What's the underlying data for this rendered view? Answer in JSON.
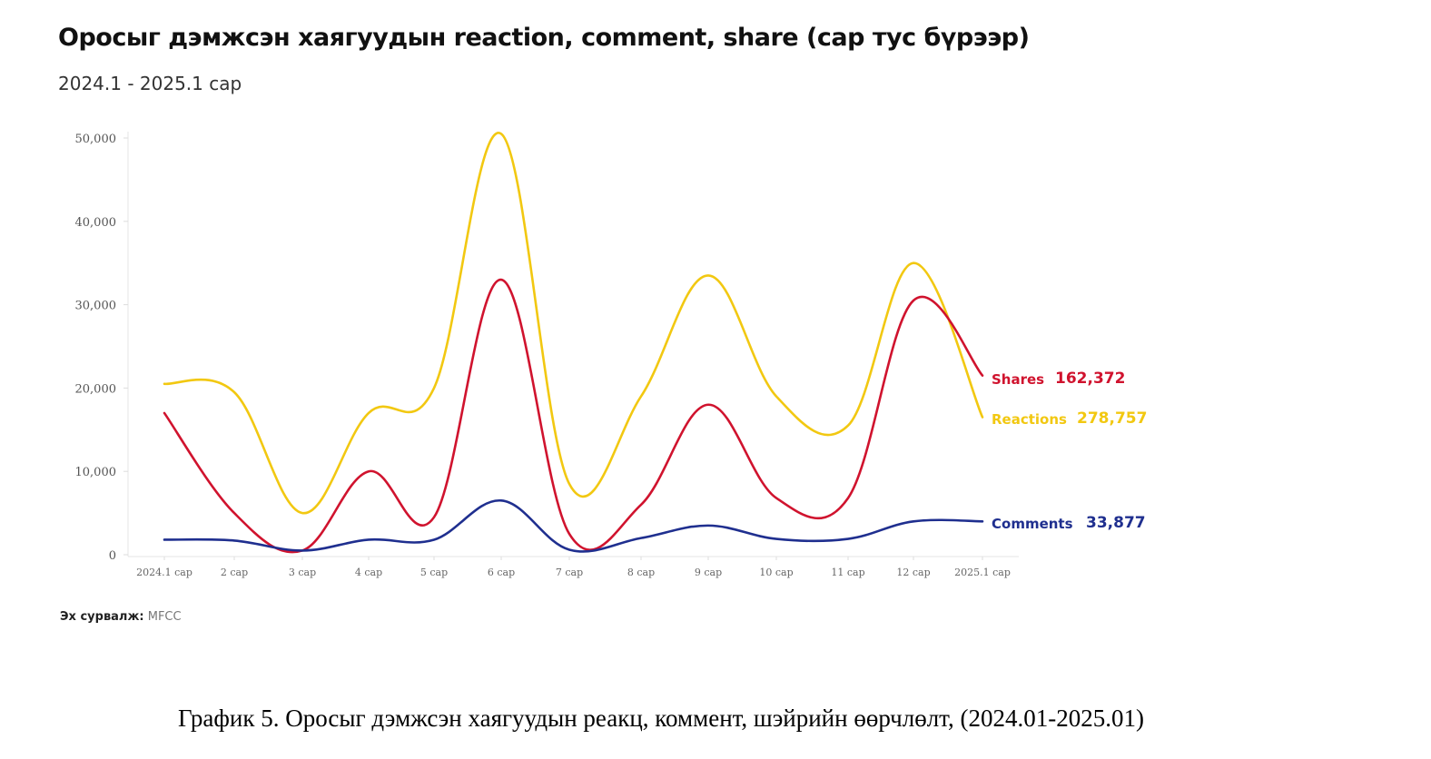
{
  "header": {
    "title": "Оросыг дэмжсэн хаягуудын reaction, comment, share (сар тус бүрээр)",
    "subtitle": "2024.1 - 2025.1 сар"
  },
  "footer": {
    "source_label": "Эх сурвалж:",
    "source_value": "MFCC",
    "caption": "График 5. Оросыг дэмжсэн хаягуудын реакц, коммент, шэйрийн өөрчлөлт, (2024.01-2025.01)"
  },
  "colors": {
    "reactions": "#F2C811",
    "shares": "#D0132E",
    "comments": "#1F2F8F"
  },
  "chart_data": {
    "type": "line",
    "title": "Оросыг дэмжсэн хаягуудын reaction, comment, share (сар тус бүрээр)",
    "subtitle": "2024.1 - 2025.1 сар",
    "xlabel": "",
    "ylabel": "",
    "ylim": [
      0,
      50000
    ],
    "yticks": [
      "0",
      "10,000",
      "20,000",
      "30,000",
      "40,000",
      "50,000"
    ],
    "categories": [
      "2024.1 сар",
      "2 сар",
      "3 сар",
      "4 сар",
      "5 сар",
      "6 сар",
      "7 сар",
      "8 сар",
      "9 сар",
      "10 сар",
      "11 сар",
      "12 сар",
      "2025.1 сар"
    ],
    "series": [
      {
        "name": "Reactions",
        "total": "278,757",
        "color": "#F2C811",
        "values": [
          20500,
          19500,
          5000,
          17000,
          20000,
          50500,
          8500,
          19000,
          33500,
          19000,
          15500,
          35000,
          16500
        ]
      },
      {
        "name": "Shares",
        "total": "162,372",
        "color": "#D0132E",
        "values": [
          17000,
          5000,
          500,
          10000,
          4500,
          33000,
          2500,
          6000,
          18000,
          6800,
          6800,
          30500,
          21500
        ]
      },
      {
        "name": "Comments",
        "total": "33,877",
        "color": "#1F2F8F",
        "values": [
          1800,
          1700,
          500,
          1800,
          1800,
          6500,
          600,
          2000,
          3500,
          1900,
          1900,
          4000,
          4000
        ]
      }
    ],
    "grid": false,
    "legend": "direct labels at line ends (right)"
  }
}
